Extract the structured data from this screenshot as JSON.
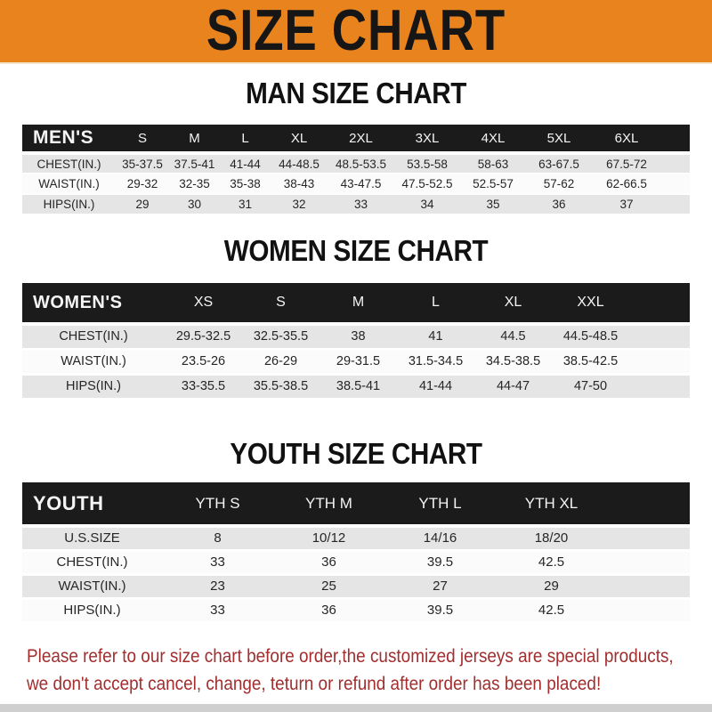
{
  "banner": {
    "title": "SIZE CHART"
  },
  "chart_data": [
    {
      "type": "table",
      "title": "MAN SIZE CHART",
      "header_label": "MEN'S",
      "columns": [
        "S",
        "M",
        "L",
        "XL",
        "2XL",
        "3XL",
        "4XL",
        "5XL",
        "6XL"
      ],
      "rows": [
        {
          "label": "CHEST(IN.)",
          "values": [
            "35-37.5",
            "37.5-41",
            "41-44",
            "44-48.5",
            "48.5-53.5",
            "53.5-58",
            "58-63",
            "63-67.5",
            "67.5-72"
          ]
        },
        {
          "label": "WAIST(IN.)",
          "values": [
            "29-32",
            "32-35",
            "35-38",
            "38-43",
            "43-47.5",
            "47.5-52.5",
            "52.5-57",
            "57-62",
            "62-66.5"
          ]
        },
        {
          "label": "HIPS(IN.)",
          "values": [
            "29",
            "30",
            "31",
            "32",
            "33",
            "34",
            "35",
            "36",
            "37"
          ]
        }
      ]
    },
    {
      "type": "table",
      "title": "WOMEN SIZE CHART",
      "header_label": "WOMEN'S",
      "columns": [
        "XS",
        "S",
        "M",
        "L",
        "XL",
        "XXL"
      ],
      "rows": [
        {
          "label": "CHEST(IN.)",
          "values": [
            "29.5-32.5",
            "32.5-35.5",
            "38",
            "41",
            "44.5",
            "44.5-48.5"
          ]
        },
        {
          "label": "WAIST(IN.)",
          "values": [
            "23.5-26",
            "26-29",
            "29-31.5",
            "31.5-34.5",
            "34.5-38.5",
            "38.5-42.5"
          ]
        },
        {
          "label": "HIPS(IN.)",
          "values": [
            "33-35.5",
            "35.5-38.5",
            "38.5-41",
            "41-44",
            "44-47",
            "47-50"
          ]
        }
      ]
    },
    {
      "type": "table",
      "title": "YOUTH SIZE CHART",
      "header_label": "YOUTH",
      "columns": [
        "YTH S",
        "YTH M",
        "YTH L",
        "YTH XL"
      ],
      "rows": [
        {
          "label": "U.S.SIZE",
          "values": [
            "8",
            "10/12",
            "14/16",
            "18/20"
          ]
        },
        {
          "label": "CHEST(IN.)",
          "values": [
            "33",
            "36",
            "39.5",
            "42.5"
          ]
        },
        {
          "label": "WAIST(IN.)",
          "values": [
            "23",
            "25",
            "27",
            "29"
          ]
        },
        {
          "label": "HIPS(IN.)",
          "values": [
            "33",
            "36",
            "39.5",
            "42.5"
          ]
        }
      ]
    }
  ],
  "disclaimer": {
    "line1": "Please refer to our size chart before order,the customized jerseys are special products,",
    "line2": "we don't accept cancel, change, teturn or refund after order has been placed!"
  },
  "colors": {
    "banner_bg": "#E8831D",
    "table_header_bg": "#1B1B1B",
    "row_alt_bg": "#E5E5E5",
    "row_bg": "#FBFBFB",
    "disclaimer_red": "#A22E2E"
  }
}
